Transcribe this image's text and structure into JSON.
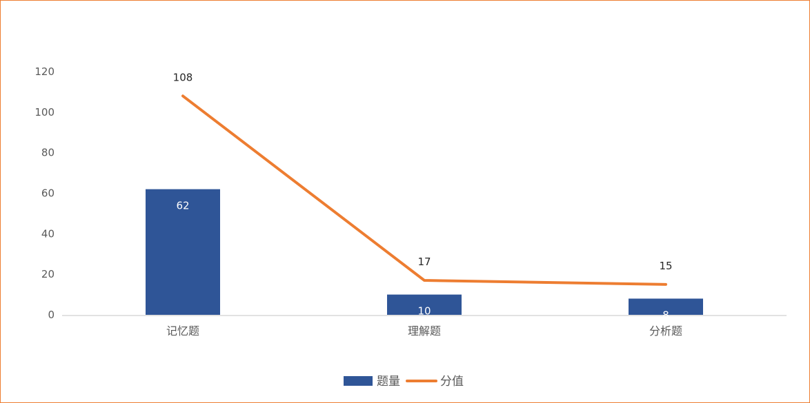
{
  "chart_data": {
    "type": "bar+line",
    "title": "",
    "xlabel": "",
    "ylabel": "",
    "ylim": [
      0,
      120
    ],
    "yticks": [
      0,
      20,
      40,
      60,
      80,
      100,
      120
    ],
    "categories": [
      "记忆题",
      "理解题",
      "分析题"
    ],
    "series": [
      {
        "name": "题量",
        "type": "bar",
        "values": [
          62,
          10,
          8
        ],
        "color": "#2F5597"
      },
      {
        "name": "分值",
        "type": "line",
        "values": [
          108,
          17,
          15
        ],
        "color": "#ED7D31"
      }
    ],
    "grid": false,
    "legend": "bottom",
    "data_labels": true
  },
  "colors": {
    "border": "#ED7D31",
    "axis": "#D9D9D9"
  }
}
